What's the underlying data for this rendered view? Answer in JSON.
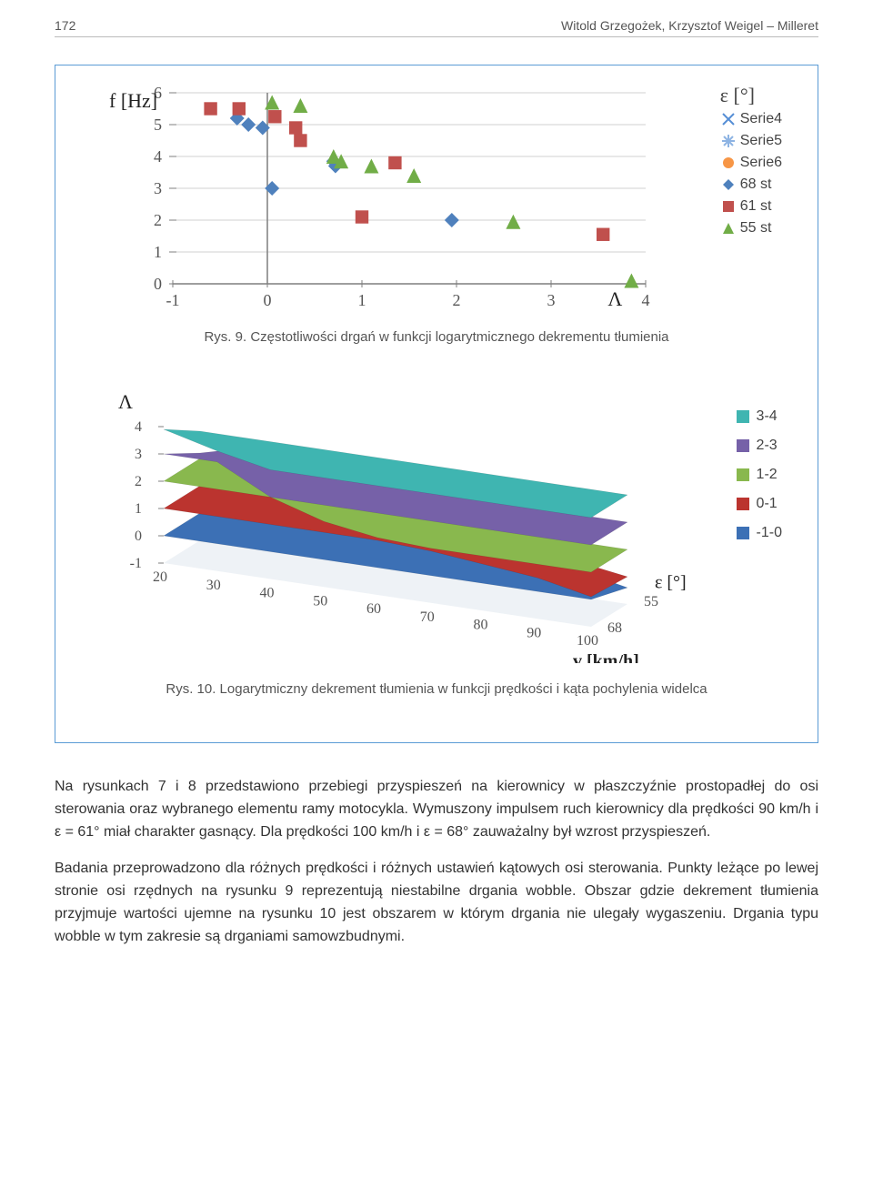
{
  "header": {
    "page_number": "172",
    "authors": "Witold Grzegożek, Krzysztof Weigel – Milleret"
  },
  "chart1": {
    "type": "scatter",
    "y_axis_label": "f [Hz]",
    "x_axis_label": "Λ",
    "legend_title": "ε [°]",
    "xlim": [
      -1,
      4
    ],
    "ylim": [
      0,
      6
    ],
    "x_ticks": [
      -1,
      0,
      1,
      2,
      3,
      4
    ],
    "y_ticks": [
      0,
      1,
      2,
      3,
      4,
      5,
      6
    ],
    "tick_fontsize": 18,
    "axis_color": "#7f7f7f",
    "grid_color": "#d0d0d0",
    "series": [
      {
        "name": "Serie4",
        "marker": "x",
        "color": "#558ed5",
        "points": []
      },
      {
        "name": "Serie5",
        "marker": "asterisk",
        "color": "#8eb4e3",
        "points": []
      },
      {
        "name": "Serie6",
        "marker": "circle",
        "color": "#f79646",
        "points": []
      },
      {
        "name": "68 st",
        "marker": "diamond",
        "color": "#4f81bd",
        "points": [
          [
            -0.32,
            5.2
          ],
          [
            -0.2,
            5.0
          ],
          [
            -0.05,
            4.9
          ],
          [
            0.05,
            3.0
          ],
          [
            0.7,
            3.85
          ],
          [
            0.72,
            3.7
          ],
          [
            1.95,
            2.0
          ]
        ]
      },
      {
        "name": "61 st",
        "marker": "square",
        "color": "#c0504d",
        "points": [
          [
            -0.6,
            5.5
          ],
          [
            -0.3,
            5.5
          ],
          [
            0.08,
            5.25
          ],
          [
            0.3,
            4.9
          ],
          [
            0.35,
            4.5
          ],
          [
            1.0,
            2.1
          ],
          [
            1.35,
            3.8
          ],
          [
            3.55,
            1.55
          ]
        ]
      },
      {
        "name": "55 st",
        "marker": "triangle",
        "color": "#71ad47",
        "points": [
          [
            0.05,
            5.7
          ],
          [
            0.35,
            5.6
          ],
          [
            0.7,
            4.0
          ],
          [
            0.78,
            3.85
          ],
          [
            1.1,
            3.7
          ],
          [
            1.55,
            3.4
          ],
          [
            2.6,
            1.95
          ],
          [
            3.85,
            0.1
          ]
        ]
      }
    ]
  },
  "caption1": "Rys. 9. Częstotliwości drgań w funkcji logarytmicznego dekrementu tłumienia",
  "chart2": {
    "type": "surface3d",
    "z_label": "Λ",
    "y_label": "ε [°]",
    "x_label": "v [km/h]",
    "z_ticks": [
      -1,
      0,
      1,
      2,
      3,
      4
    ],
    "x_ticks": [
      20,
      30,
      40,
      50,
      60,
      70,
      80,
      90,
      100
    ],
    "y_ticks": [
      55,
      68
    ],
    "tick_fontsize": 16,
    "legend": [
      {
        "label": "3-4",
        "color": "#3fb5b1"
      },
      {
        "label": "2-3",
        "color": "#7661a8"
      },
      {
        "label": "1-2",
        "color": "#89b84e"
      },
      {
        "label": "0-1",
        "color": "#bb342f"
      },
      {
        "label": "-1-0",
        "color": "#3c70b5"
      }
    ],
    "axis_color": "#7f7f7f"
  },
  "caption2": "Rys. 10. Logarytmiczny dekrement tłumienia w funkcji prędkości i kąta pochylenia widelca",
  "paragraphs": [
    "Na rysunkach 7 i 8 przedstawiono przebiegi przyspieszeń na kierownicy w płaszczyźnie prostopadłej do osi sterowania oraz wybranego elementu ramy motocykla. Wymuszony impulsem ruch kierownicy dla prędkości 90 km/h i ε = 61° miał charakter gasnący. Dla prędkości 100 km/h i ε = 68° zauważalny był wzrost przyspieszeń.",
    "Badania przeprowadzono dla różnych prędkości i różnych ustawień kątowych osi sterowania. Punkty leżące po lewej stronie osi rzędnych na rysunku 9 reprezentują niestabilne drgania wobble. Obszar gdzie dekrement tłumienia przyjmuje wartości ujemne na rysunku 10 jest obszarem w którym drgania nie ulegały wygaszeniu. Drgania typu wobble w tym zakresie są drganiami samowzbudnymi."
  ]
}
